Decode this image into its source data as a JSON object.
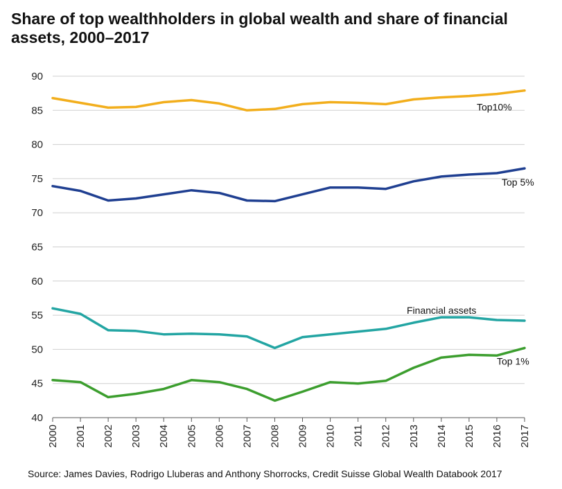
{
  "chart_data": {
    "type": "line",
    "title": "Share of top wealthholders in global wealth and share of financial assets, 2000–2017",
    "xlabel": "",
    "ylabel": "",
    "x": [
      "2000",
      "2001",
      "2002",
      "2003",
      "2004",
      "2005",
      "2006",
      "2007",
      "2008",
      "2009",
      "2010",
      "2011",
      "2012",
      "2013",
      "2014",
      "2015",
      "2016",
      "2017"
    ],
    "ylim": [
      40,
      90
    ],
    "yticks": [
      "40",
      "45",
      "50",
      "55",
      "60",
      "65",
      "70",
      "75",
      "80",
      "85",
      "90"
    ],
    "grid": true,
    "legend": "none",
    "series": [
      {
        "name": "Top10%",
        "color": "#F2AE1C",
        "values": [
          86.8,
          86.1,
          85.4,
          85.5,
          86.2,
          86.5,
          86.0,
          85.0,
          85.2,
          85.9,
          86.2,
          86.1,
          85.9,
          86.6,
          86.9,
          87.1,
          87.4,
          87.9
        ]
      },
      {
        "name": "Top 5%",
        "color": "#1F3F91",
        "values": [
          73.9,
          73.2,
          71.8,
          72.1,
          72.7,
          73.3,
          72.9,
          71.8,
          71.7,
          72.7,
          73.7,
          73.7,
          73.5,
          74.6,
          75.3,
          75.6,
          75.8,
          76.5
        ]
      },
      {
        "name": "Financial assets",
        "color": "#23A5A3",
        "values": [
          56.0,
          55.2,
          52.8,
          52.7,
          52.2,
          52.3,
          52.2,
          51.9,
          50.2,
          51.8,
          52.2,
          52.6,
          53.0,
          53.9,
          54.7,
          54.7,
          54.3,
          54.2
        ]
      },
      {
        "name": "Top 1%",
        "color": "#3C9E2E",
        "values": [
          45.5,
          45.2,
          43.0,
          43.5,
          44.2,
          45.5,
          45.2,
          44.2,
          42.5,
          43.8,
          45.2,
          45.0,
          45.4,
          47.3,
          48.8,
          49.2,
          49.1,
          50.2
        ]
      }
    ],
    "source": "Source: James Davies, Rodrigo Lluberas and Anthony Shorrocks, Credit Suisse Global Wealth Databook 2017"
  }
}
